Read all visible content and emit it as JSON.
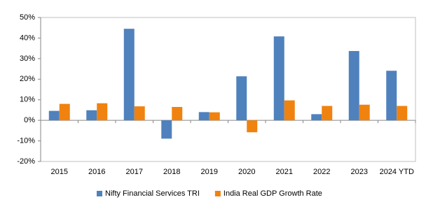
{
  "chart_data": {
    "type": "bar",
    "categories": [
      "2015",
      "2016",
      "2017",
      "2018",
      "2019",
      "2020",
      "2021",
      "2022",
      "2023",
      "2024 YTD"
    ],
    "series": [
      {
        "name": "Nifty Financial Services TRI",
        "color": "#4f81bd",
        "values": [
          4.6,
          4.9,
          44.5,
          -8.9,
          4.0,
          21.4,
          40.8,
          3.0,
          33.7,
          24.1
        ]
      },
      {
        "name": "India Real GDP Growth Rate",
        "color": "#f0820f",
        "values": [
          8.0,
          8.3,
          6.8,
          6.5,
          3.9,
          -5.8,
          9.7,
          7.0,
          7.6,
          7.0
        ]
      }
    ],
    "ylim": [
      -20,
      50
    ],
    "yticks": [
      {
        "value": -20,
        "label": "-20%"
      },
      {
        "value": -10,
        "label": "-10%"
      },
      {
        "value": 0,
        "label": "0%"
      },
      {
        "value": 10,
        "label": "10%"
      },
      {
        "value": 20,
        "label": "20%"
      },
      {
        "value": 30,
        "label": "30%"
      },
      {
        "value": 40,
        "label": "40%"
      },
      {
        "value": 50,
        "label": "50%"
      }
    ],
    "grid": false,
    "legend": "bottom"
  }
}
